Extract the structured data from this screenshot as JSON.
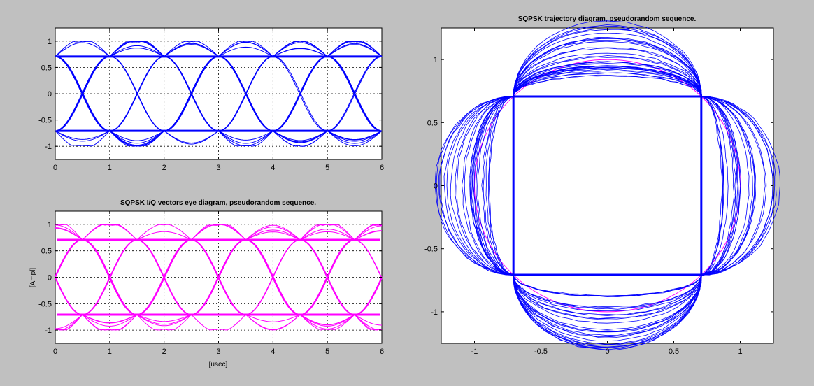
{
  "figure": {
    "background": "#c0c0c0",
    "axes_background": "#ffffff",
    "colors": {
      "i_eye": "#0000ff",
      "q_eye": "#ff00ff",
      "trajectory": "#0000ff",
      "unit_circle": "#ff00ff"
    }
  },
  "chart_data": [
    {
      "id": "i-eye",
      "type": "line",
      "title": "",
      "xlabel": "",
      "ylabel": "",
      "xlim": [
        0,
        6
      ],
      "ylim": [
        -1.25,
        1.25
      ],
      "xticks": [
        "0",
        "1",
        "2",
        "3",
        "4",
        "5",
        "6"
      ],
      "yticks": [
        "1",
        "0.5",
        "0",
        "-0.5",
        "-1"
      ],
      "grid": true,
      "series_color": "#0000ff",
      "series": [
        {
          "description_of_shape": "eye pattern",
          "symbol_period_usec": 1,
          "offset_usec": 0,
          "levels": [
            0.707,
            -0.707
          ],
          "peak": 1.0,
          "traces": 18
        }
      ]
    },
    {
      "id": "q-eye",
      "type": "line",
      "title": "SQPSK I/Q vectors eye diagram, pseudorandom sequence.",
      "xlabel": "[usec]",
      "ylabel": "[Ampl]",
      "xlim": [
        0,
        6
      ],
      "ylim": [
        -1.25,
        1.25
      ],
      "xticks": [
        "0",
        "1",
        "2",
        "3",
        "4",
        "5",
        "6"
      ],
      "yticks": [
        "1",
        "0.5",
        "0",
        "-0.5",
        "-1"
      ],
      "grid": true,
      "series_color": "#ff00ff",
      "series": [
        {
          "symbol_period_usec": 1,
          "offset_usec": 0.5,
          "levels": [
            0.707,
            -0.707
          ],
          "peak": 1.0,
          "traces": 18
        }
      ]
    },
    {
      "id": "trajectory",
      "type": "line",
      "title": "SQPSK trajectory diagram, pseudorandom sequence.",
      "xlabel": "",
      "ylabel": "",
      "xlim": [
        -1.25,
        1.25
      ],
      "ylim": [
        -1.25,
        1.25
      ],
      "xticks": [
        "-1",
        "-0.5",
        "0",
        "0.5",
        "1"
      ],
      "yticks": [
        "1",
        "0.5",
        "0",
        "-0.5",
        "-1"
      ],
      "grid": false,
      "unit_circle_radius": 1,
      "constellation": [
        [
          0.707,
          0.707
        ],
        [
          -0.707,
          0.707
        ],
        [
          -0.707,
          -0.707
        ],
        [
          0.707,
          -0.707
        ]
      ]
    }
  ]
}
